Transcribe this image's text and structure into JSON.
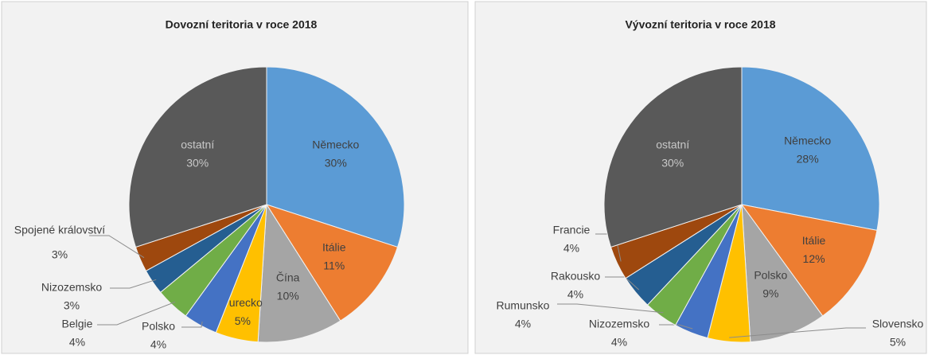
{
  "chart_data": [
    {
      "type": "pie",
      "title": "Dovozní teritoria v roce 2018",
      "categories": [
        "Německo",
        "Itálie",
        "Čína",
        "Turecko",
        "Polsko",
        "Belgie",
        "Nizozemsko",
        "Spojené království",
        "ostatní"
      ],
      "values": [
        30,
        11,
        10,
        5,
        4,
        4,
        3,
        3,
        30
      ],
      "value_labels": [
        "30%",
        "11%",
        "10%",
        "5%",
        "4%",
        "4%",
        "3%",
        "3%",
        "30%"
      ],
      "colors": [
        "#5b9bd5",
        "#ed7d31",
        "#a5a5a5",
        "#ffc000",
        "#4472c4",
        "#70ad47",
        "#255e91",
        "#9e480e",
        "#595959"
      ]
    },
    {
      "type": "pie",
      "title": "Vývozní teritoria v roce 2018",
      "categories": [
        "Německo",
        "Itálie",
        "Polsko",
        "Slovensko",
        "Nizozemsko",
        "Rumunsko",
        "Rakousko",
        "Francie",
        "ostatní"
      ],
      "values": [
        28,
        12,
        9,
        5,
        4,
        4,
        4,
        4,
        30
      ],
      "value_labels": [
        "28%",
        "12%",
        "9%",
        "5%",
        "4%",
        "4%",
        "4%",
        "4%",
        "30%"
      ],
      "colors": [
        "#5b9bd5",
        "#ed7d31",
        "#a5a5a5",
        "#ffc000",
        "#4472c4",
        "#70ad47",
        "#255e91",
        "#9e480e",
        "#595959"
      ]
    }
  ]
}
